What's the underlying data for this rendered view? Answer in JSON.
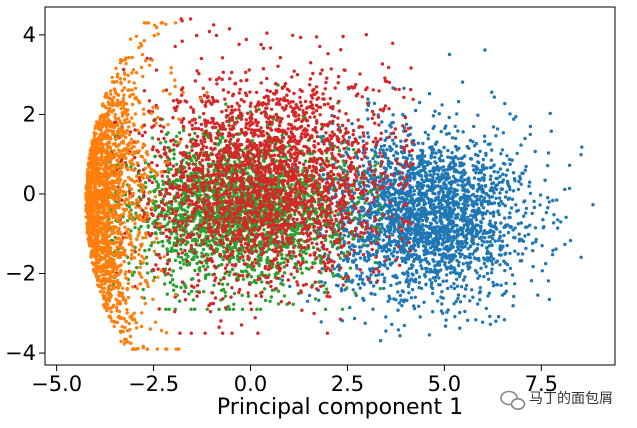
{
  "chart_data": {
    "type": "scatter",
    "title": "",
    "xlabel": "Principal component 1",
    "ylabel": "",
    "xlim": [
      -5.3,
      9.4
    ],
    "ylim": [
      -4.3,
      4.7
    ],
    "xticks": [
      -5.0,
      -2.5,
      0.0,
      2.5,
      5.0,
      7.5
    ],
    "xtick_labels": [
      "−5.0",
      "−2.5",
      "0.0",
      "2.5",
      "5.0",
      "7.5"
    ],
    "yticks": [
      -4,
      -2,
      0,
      2,
      4
    ],
    "ytick_labels": [
      "−4",
      "−2",
      "0",
      "2",
      "4"
    ],
    "grid": false,
    "series": [
      {
        "color": "#1f77b4",
        "distribution": {
          "kind": "gaussian",
          "center": [
            4.5,
            -0.5
          ],
          "spread": [
            1.3,
            1.05
          ],
          "x_range": [
            0.5,
            9.0
          ],
          "y_range": [
            -3.8,
            3.9
          ],
          "count": 2600
        }
      },
      {
        "color": "#2ca02c",
        "distribution": {
          "kind": "gaussian",
          "center": [
            -0.3,
            -0.4
          ],
          "spread": [
            1.4,
            0.95
          ],
          "x_range": [
            -3.7,
            3.5
          ],
          "y_range": [
            -2.9,
            4.3
          ],
          "count": 2400
        }
      },
      {
        "color": "#d62728",
        "distribution": {
          "kind": "gaussian",
          "center": [
            0.4,
            0.4
          ],
          "spread": [
            1.6,
            1.3
          ],
          "x_range": [
            -3.6,
            4.2
          ],
          "y_range": [
            -3.5,
            4.4
          ],
          "count": 2600
        }
      },
      {
        "color": "#ff7f0e",
        "distribution": {
          "kind": "arc",
          "center": [
            -3.5,
            -0.2
          ],
          "spread": [
            0.45,
            2.2
          ],
          "x_range": [
            -4.5,
            -1.0
          ],
          "y_range": [
            -3.9,
            4.3
          ],
          "count": 1800
        }
      }
    ]
  },
  "watermark": {
    "icon": "wechat-icon",
    "text": "马丁的面包屑"
  }
}
